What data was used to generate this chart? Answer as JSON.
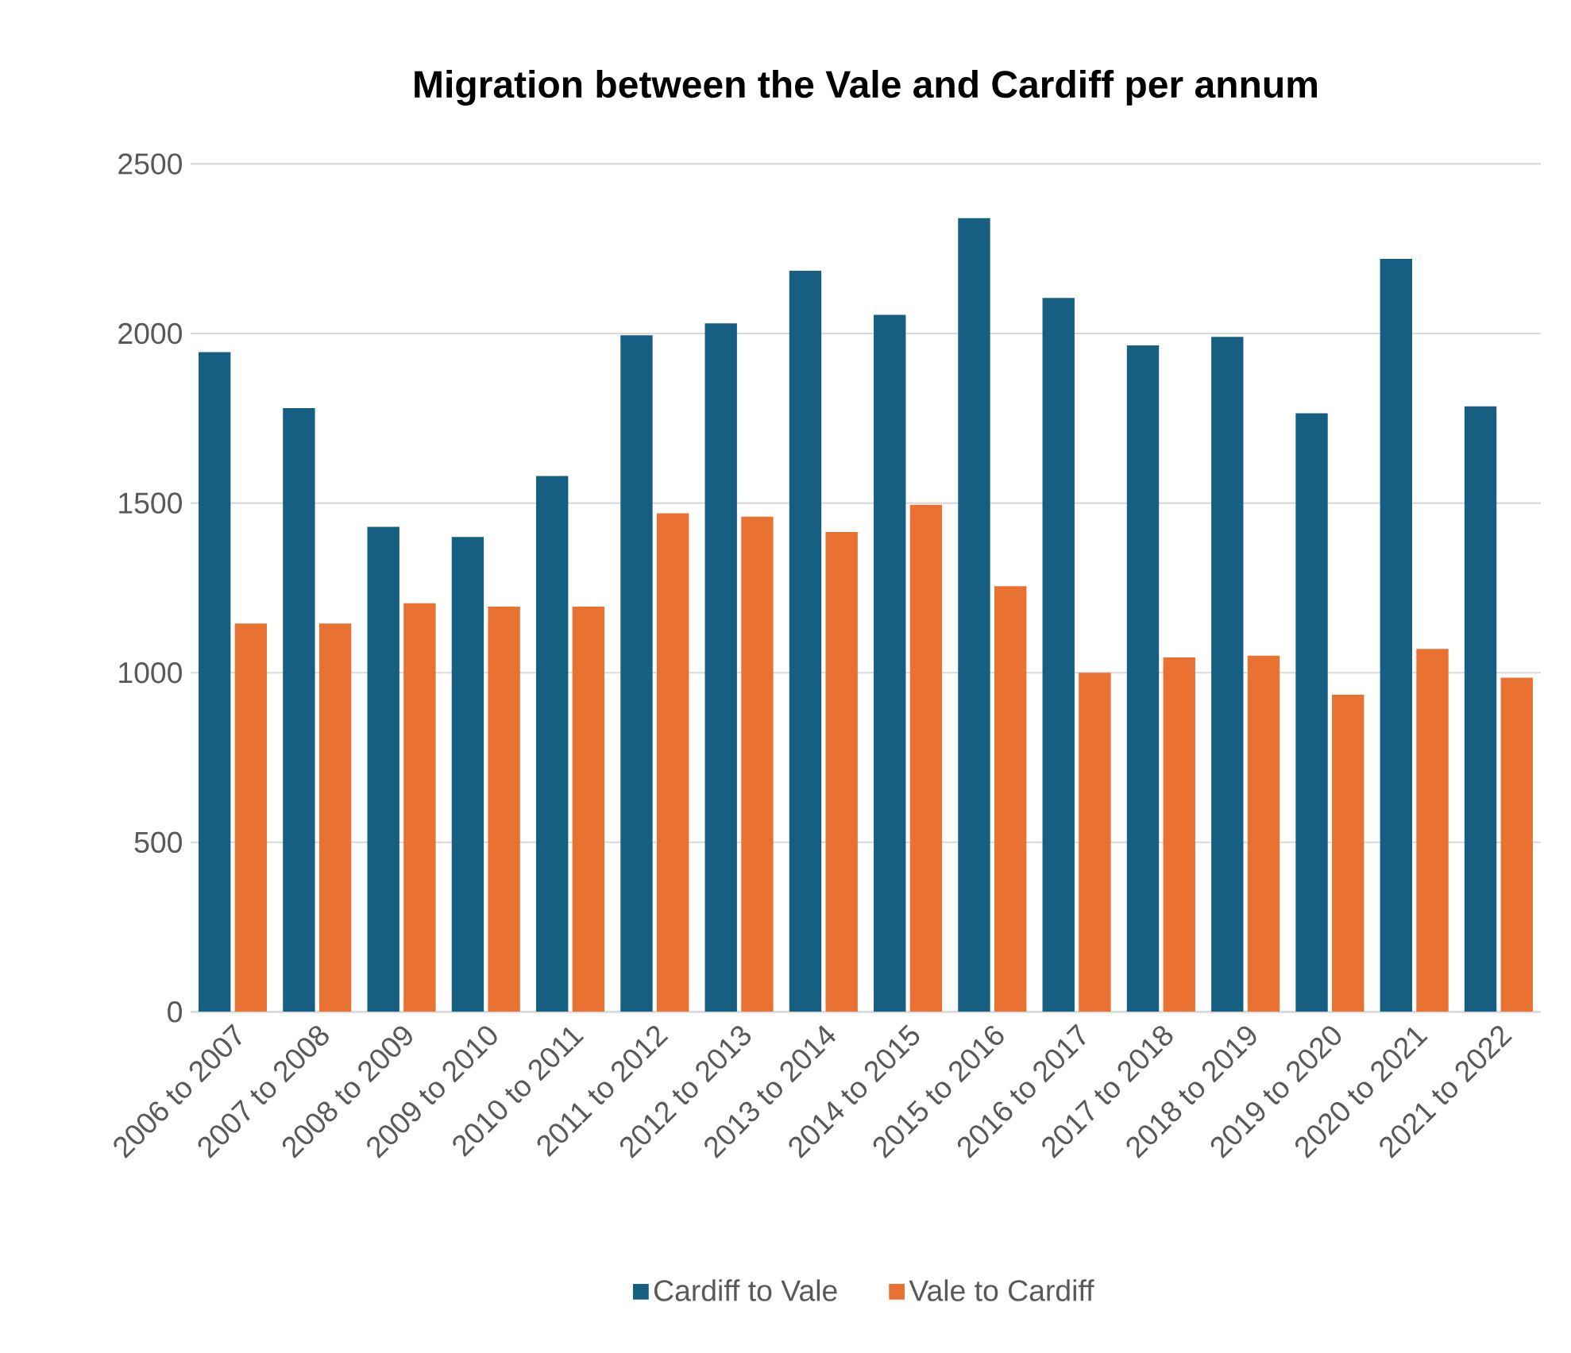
{
  "chart_data": {
    "type": "bar",
    "title": "Migration between the Vale and Cardiff per annum",
    "categories": [
      "2006 to 2007",
      "2007 to 2008",
      "2008 to 2009",
      "2009 to 2010",
      "2010 to 2011",
      "2011 to 2012",
      "2012 to 2013",
      "2013 to 2014",
      "2014 to 2015",
      "2015 to 2016",
      "2016 to 2017",
      "2017 to 2018",
      "2018 to 2019",
      "2019 to 2020",
      "2020 to 2021",
      "2021 to 2022"
    ],
    "series": [
      {
        "name": "Cardiff to Vale",
        "color": "#175f82",
        "values": [
          1945,
          1780,
          1430,
          1400,
          1580,
          1995,
          2030,
          2185,
          2055,
          2340,
          2105,
          1965,
          1990,
          1765,
          2220,
          1785
        ]
      },
      {
        "name": "Vale to Cardiff",
        "color": "#e97132",
        "values": [
          1145,
          1145,
          1205,
          1195,
          1195,
          1470,
          1460,
          1415,
          1495,
          1255,
          1000,
          1045,
          1050,
          935,
          1070,
          985
        ]
      }
    ],
    "ylim": [
      0,
      2500
    ],
    "yticks": [
      0,
      500,
      1000,
      1500,
      2000,
      2500
    ],
    "grid": "y",
    "legend": "bottom"
  }
}
